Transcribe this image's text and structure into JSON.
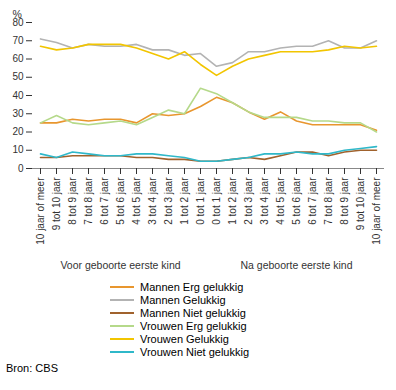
{
  "chart_data": {
    "type": "line",
    "y_label": "%",
    "categories": [
      "10 jaar of meer",
      "9 tot 10 jaar",
      "8 tot 9 jaar",
      "7 tot 8 jaar",
      "6 tot 7 jaar",
      "5 tot 6 jaar",
      "4 tot 5 jaar",
      "3 tot 4 jaar",
      "2 tot 3 jaar",
      "1 tot 2 jaar",
      "0 tot 1 jaar",
      "0 tot 1 jaar",
      "1 tot 2 jaar",
      "2 tot 3 jaar",
      "3 tot 4 jaar",
      "4 tot 5 jaar",
      "5 tot 6 jaar",
      "6 tot 7 jaar",
      "7 tot 8 jaar",
      "8 tot 9 jaar",
      "9 tot 10 jaar",
      "10 jaar of meer"
    ],
    "groups": [
      {
        "label": "Voor geboorte eerste kind",
        "size": 11
      },
      {
        "label": "Na geboorte eerste kind",
        "size": 11
      }
    ],
    "series": [
      {
        "name": "Mannen Erg gelukkig",
        "color": "#e8962e",
        "values": [
          25,
          25,
          27,
          26,
          27,
          27,
          25,
          30,
          29,
          30,
          34,
          39,
          36,
          31,
          27,
          31,
          26,
          24,
          24,
          24,
          24,
          21
        ]
      },
      {
        "name": "Mannen Gelukkig",
        "color": "#b3b3b3",
        "values": [
          71,
          69,
          66,
          68,
          67,
          67,
          68,
          65,
          65,
          62,
          63,
          56,
          58,
          64,
          64,
          66,
          67,
          67,
          70,
          66,
          66,
          70
        ]
      },
      {
        "name": "Mannen Niet gelukkig",
        "color": "#a0622d",
        "values": [
          6,
          6,
          7,
          7,
          7,
          7,
          6,
          6,
          5,
          5,
          4,
          4,
          5,
          6,
          5,
          7,
          9,
          9,
          7,
          9,
          10,
          10
        ]
      },
      {
        "name": "Vrouwen Erg gelukkig",
        "color": "#b5d98a",
        "values": [
          25,
          29,
          25,
          24,
          25,
          26,
          24,
          28,
          32,
          30,
          44,
          41,
          36,
          31,
          28,
          28,
          28,
          26,
          26,
          25,
          25,
          20
        ]
      },
      {
        "name": "Vrouwen Gelukkig",
        "color": "#f2c500",
        "values": [
          67,
          65,
          66,
          68,
          68,
          68,
          66,
          63,
          60,
          64,
          57,
          51,
          56,
          60,
          62,
          64,
          64,
          64,
          65,
          67,
          66,
          67
        ]
      },
      {
        "name": "Vrouwen Niet gelukkig",
        "color": "#2fb8c9",
        "values": [
          8,
          6,
          9,
          8,
          7,
          7,
          8,
          8,
          7,
          6,
          4,
          4,
          5,
          6,
          8,
          8,
          9,
          8,
          8,
          10,
          11,
          12
        ]
      }
    ],
    "ylim": [
      0,
      80
    ],
    "yticks": [
      0,
      10,
      20,
      30,
      40,
      50,
      60,
      70,
      80
    ],
    "grid": false,
    "legend": "bottom",
    "source": "Bron: CBS"
  }
}
